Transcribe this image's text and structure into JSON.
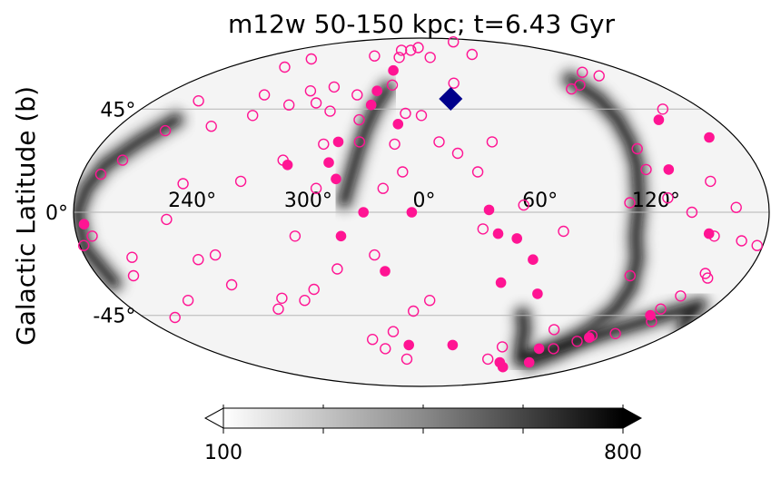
{
  "chart_data": {
    "type": "scatter",
    "projection": "mollweide",
    "title": "m12w 50-150 kpc; t=6.43 Gyr",
    "ylabel": "Galactic Latitude (b)",
    "lat_ticks": [
      {
        "value": 45,
        "label": "45°"
      },
      {
        "value": 0,
        "label": "0°"
      },
      {
        "value": -45,
        "label": "-45°"
      }
    ],
    "lon_ticks": [
      {
        "value": 120,
        "label": "120°"
      },
      {
        "value": 60,
        "label": "60°"
      },
      {
        "value": 0,
        "label": "0°"
      },
      {
        "value": -60,
        "label": "300°"
      },
      {
        "value": -120,
        "label": "240°"
      }
    ],
    "grid": true,
    "colorbar": {
      "min": 100,
      "max": 800,
      "min_label": "100",
      "max_label": "800",
      "minor_ticks": [
        275,
        450,
        625
      ],
      "colormap": "greys",
      "extend": "both"
    },
    "density_streams": [
      {
        "name": "stream-left",
        "points": [
          [
            119,
            60
          ],
          [
            121,
            50
          ],
          [
            120,
            40
          ],
          [
            118,
            30
          ],
          [
            116,
            20
          ],
          [
            113,
            5
          ],
          [
            112,
            -10
          ],
          [
            116,
            -20
          ],
          [
            120,
            -32
          ],
          [
            121,
            -42
          ],
          [
            118,
            -52
          ],
          [
            115,
            -63
          ],
          [
            110,
            -70
          ]
        ]
      },
      {
        "name": "stream-right",
        "points": [
          [
            -150,
            40
          ],
          [
            -160,
            30
          ],
          [
            -170,
            20
          ],
          [
            -175,
            10
          ],
          [
            -178,
            0
          ],
          [
            -178,
            -15
          ],
          [
            -174,
            -30
          ]
        ]
      },
      {
        "name": "stream-upper-middle",
        "points": [
          [
            -25,
            55
          ],
          [
            -30,
            45
          ],
          [
            -33,
            35
          ],
          [
            -35,
            25
          ],
          [
            -40,
            5
          ]
        ]
      },
      {
        "name": "stream-lower-left",
        "points": [
          [
            65,
            -45
          ],
          [
            72,
            -52
          ],
          [
            80,
            -60
          ],
          [
            95,
            -68
          ],
          [
            170,
            -40
          ],
          [
            178,
            -50
          ]
        ]
      }
    ],
    "series": [
      {
        "marker": "open-circle",
        "color": "#ff1493",
        "points": [
          [
            -15,
            78
          ],
          [
            -25,
            73
          ],
          [
            10,
            73
          ],
          [
            -55,
            74
          ],
          [
            -120,
            72
          ],
          [
            140,
            64
          ],
          [
            148,
            62
          ],
          [
            120,
            57
          ],
          [
            25,
            58
          ],
          [
            -22,
            57
          ],
          [
            -65,
            56
          ],
          [
            -80,
            54
          ],
          [
            -110,
            52
          ],
          [
            -150,
            49
          ],
          [
            -45,
            52
          ],
          [
            -70,
            48
          ],
          [
            -105,
            42
          ],
          [
            -87,
            47
          ],
          [
            -125,
            37
          ],
          [
            155,
            45
          ],
          [
            110,
            55
          ],
          [
            -58,
            44
          ],
          [
            -10,
            43
          ],
          [
            0,
            42
          ],
          [
            -38,
            40
          ],
          [
            -5,
            80
          ],
          [
            -28,
            78
          ],
          [
            -128,
            67
          ],
          [
            62,
            75
          ],
          [
            80,
            85
          ],
          [
            120,
            27
          ],
          [
            120,
            18
          ],
          [
            128,
            6
          ],
          [
            108,
            4
          ],
          [
            152,
            13
          ],
          [
            163,
            2
          ],
          [
            40,
            30
          ],
          [
            10,
            30
          ],
          [
            -15,
            29
          ],
          [
            -35,
            30
          ],
          [
            -55,
            29
          ],
          [
            -75,
            22
          ],
          [
            -95,
            13
          ],
          [
            -125,
            12
          ],
          [
            -162,
            22
          ],
          [
            -170,
            16
          ],
          [
            -150,
            35
          ],
          [
            140,
            0
          ],
          [
            153,
            -10
          ],
          [
            116,
            -27
          ],
          [
            74,
            -8
          ],
          [
            32,
            -7
          ],
          [
            53,
            3
          ],
          [
            30,
            17
          ],
          [
            20,
            25
          ],
          [
            -10,
            17
          ],
          [
            -20,
            10
          ],
          [
            -55,
            10
          ],
          [
            -66,
            -10
          ],
          [
            -132,
            -3
          ],
          [
            -110,
            -18
          ],
          [
            -155,
            -19
          ],
          [
            -172,
            -10
          ],
          [
            -178,
            -14
          ],
          [
            168,
            -12
          ],
          [
            177,
            -14
          ],
          [
            -160,
            -27
          ],
          [
            157,
            -26
          ],
          [
            153,
            -36
          ],
          [
            149,
            -42
          ],
          [
            153,
            -48
          ],
          [
            140,
            -54
          ],
          [
            125,
            -55
          ],
          [
            120,
            -58
          ],
          [
            110,
            -62
          ],
          [
            93,
            -52
          ],
          [
            66,
            -61
          ],
          [
            64,
            -68
          ],
          [
            5,
            -38
          ],
          [
            -5,
            -43
          ],
          [
            -20,
            -53
          ],
          [
            -30,
            -62
          ],
          [
            -37,
            -57
          ],
          [
            -14,
            -68
          ],
          [
            -46,
            -24
          ],
          [
            -62,
            -33
          ],
          [
            -83,
            -37
          ],
          [
            -70,
            -38
          ],
          [
            -89,
            -42
          ],
          [
            -108,
            -31
          ],
          [
            -120,
            -20
          ],
          [
            160,
            -28
          ],
          [
            -25,
            -18
          ],
          [
            -140,
            -38
          ],
          [
            -160,
            -46
          ]
        ]
      },
      {
        "marker": "filled-circle",
        "color": "#ff1493",
        "points": [
          [
            165,
            32
          ],
          [
            145,
            40
          ],
          [
            132,
            18
          ],
          [
            150,
            -9
          ],
          [
            125,
            -56
          ],
          [
            60,
            -20
          ],
          [
            68,
            -35
          ],
          [
            45,
            -30
          ],
          [
            25,
            -60
          ],
          [
            -20,
            -25
          ],
          [
            35,
            1
          ],
          [
            40,
            -9
          ],
          [
            50,
            -11
          ],
          [
            -14,
            38
          ],
          [
            -45,
            14
          ],
          [
            -50,
            21
          ],
          [
            -47,
            30
          ],
          [
            -33,
            47
          ],
          [
            -32,
            54
          ],
          [
            -25,
            65
          ],
          [
            -72,
            20
          ],
          [
            -175,
            -5
          ],
          [
            -10,
            -60
          ],
          [
            80,
            -70
          ],
          [
            98,
            -62
          ],
          [
            110,
            -70
          ],
          [
            92,
            -73
          ],
          [
            147,
            -45
          ],
          [
            -5,
            0
          ],
          [
            -30,
            0
          ],
          [
            -42,
            -10
          ]
        ]
      },
      {
        "marker": "diamond",
        "color": "#00008b",
        "points": [
          [
            20,
            50
          ]
        ]
      }
    ]
  }
}
